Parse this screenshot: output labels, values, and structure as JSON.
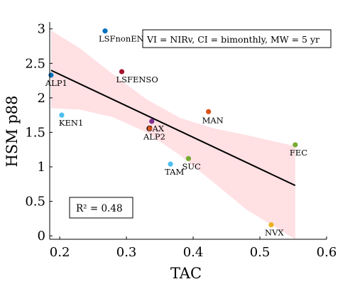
{
  "chart_data": {
    "type": "scatter",
    "xlabel": "TAC",
    "ylabel": "HSM p88",
    "xlim": [
      0.185,
      0.6
    ],
    "ylim": [
      -0.05,
      3.1
    ],
    "xticks": [
      0.2,
      0.3,
      0.4,
      0.5,
      0.6
    ],
    "xtick_labels": [
      "0.2",
      "0.3",
      "0.4",
      "0.5",
      "0.6"
    ],
    "yticks": [
      0,
      0.5,
      1,
      1.5,
      2,
      2.5,
      3
    ],
    "ytick_labels": [
      "0",
      "0.5",
      "1",
      "1.5",
      "2",
      "2.5",
      "3"
    ],
    "grid": false,
    "legend_text": "VI = NIRv, CI = bimonthly, MW = 5 yr",
    "r2_text": "R² = 0.48",
    "points": [
      {
        "label": "LSFnonENSO",
        "x": 0.268,
        "y": 2.97,
        "color": "#0072bd"
      },
      {
        "label": "ALP1",
        "x": 0.187,
        "y": 2.33,
        "color": "#0072bd"
      },
      {
        "label": "LSFENSO",
        "x": 0.293,
        "y": 2.38,
        "color": "#a2142f"
      },
      {
        "label": "KEN1",
        "x": 0.203,
        "y": 1.75,
        "color": "#4dbeee"
      },
      {
        "label": "CAX",
        "x": 0.338,
        "y": 1.66,
        "color": "#7e2f8e"
      },
      {
        "label": "ALP2",
        "x": 0.335,
        "y": 1.56,
        "color": "#d95319"
      },
      {
        "label": "MAN",
        "x": 0.423,
        "y": 1.8,
        "color": "#d95319"
      },
      {
        "label": "FEC",
        "x": 0.553,
        "y": 1.32,
        "color": "#77ac30"
      },
      {
        "label": "SUC",
        "x": 0.393,
        "y": 1.12,
        "color": "#77ac30"
      },
      {
        "label": "TAM",
        "x": 0.366,
        "y": 1.04,
        "color": "#4dbeee"
      },
      {
        "label": "NVX",
        "x": 0.517,
        "y": 0.16,
        "color": "#edb120"
      }
    ],
    "fit_line": {
      "x": [
        0.187,
        0.553
      ],
      "y": [
        2.4,
        0.73
      ],
      "color": "#000000"
    },
    "confidence_band": {
      "x": [
        0.187,
        0.23,
        0.28,
        0.33,
        0.38,
        0.43,
        0.48,
        0.553
      ],
      "upper": [
        2.98,
        2.72,
        2.34,
        1.98,
        1.71,
        1.56,
        1.46,
        1.3
      ],
      "lower": [
        1.85,
        1.83,
        1.72,
        1.5,
        1.17,
        0.78,
        0.38,
        -0.05
      ],
      "color": "#ffe0e3"
    }
  }
}
